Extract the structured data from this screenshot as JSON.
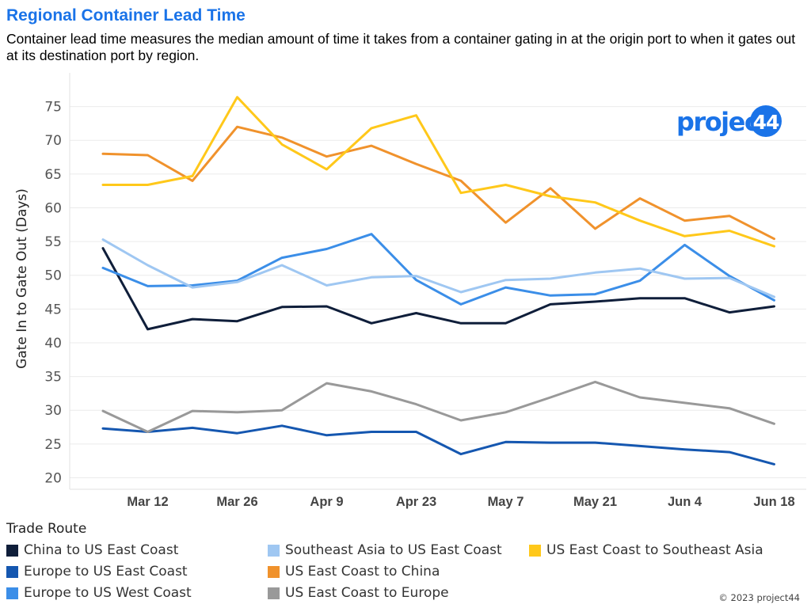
{
  "header": {
    "title": "Regional Container Lead Time",
    "subtitle": "Container lead time measures the median amount of time it takes from a container gating in at the origin port to when it gates out at its destination port by region."
  },
  "logo": {
    "text": "project44",
    "color": "#1a73e8"
  },
  "footer": {
    "copyright": "© 2023 project44"
  },
  "chart_data": {
    "type": "line",
    "title": "Regional Container Lead Time",
    "xlabel": "",
    "ylabel": "Gate In to Gate Out (Days)",
    "ylim": [
      19,
      80
    ],
    "yticks": [
      20,
      25,
      30,
      35,
      40,
      45,
      50,
      55,
      60,
      65,
      70,
      75
    ],
    "x_tick_labels": [
      "Mar 12",
      "Mar 26",
      "Apr 9",
      "Apr 23",
      "May 7",
      "May 21",
      "Jun 4",
      "Jun 18"
    ],
    "x_tick_index": [
      1,
      3,
      5,
      7,
      9,
      11,
      13,
      15
    ],
    "point_count": 16,
    "grid": "horizontal",
    "legend_title": "Trade Route",
    "legend_position": "bottom",
    "series": [
      {
        "name": "China to US East Coast",
        "color": "#0f1e3a",
        "values": [
          54.0,
          42.0,
          43.5,
          43.2,
          45.3,
          45.4,
          42.9,
          44.4,
          42.9,
          42.9,
          45.7,
          46.1,
          46.6,
          46.6,
          44.5,
          45.4
        ]
      },
      {
        "name": "Europe to US East Coast",
        "color": "#1557b0",
        "values": [
          27.3,
          26.8,
          27.4,
          26.6,
          27.7,
          26.3,
          26.8,
          26.8,
          23.5,
          25.3,
          25.2,
          25.2,
          24.7,
          24.2,
          23.8,
          22.0
        ]
      },
      {
        "name": "Europe to US West Coast",
        "color": "#3b8ee8",
        "values": [
          51.1,
          48.4,
          48.5,
          49.2,
          52.6,
          53.9,
          56.1,
          49.3,
          45.7,
          48.2,
          47.0,
          47.2,
          49.2,
          54.5,
          49.9,
          46.3
        ]
      },
      {
        "name": "Southeast Asia to US East Coast",
        "color": "#9fc7f2",
        "values": [
          55.3,
          51.5,
          48.2,
          49.0,
          51.5,
          48.5,
          49.7,
          49.9,
          47.5,
          49.3,
          49.5,
          50.4,
          51.0,
          49.5,
          49.6,
          46.8
        ]
      },
      {
        "name": "US East Coast to China",
        "color": "#f0922c",
        "values": [
          68.0,
          67.8,
          64.0,
          72.0,
          70.4,
          67.6,
          69.2,
          66.5,
          64.0,
          57.8,
          62.9,
          56.9,
          61.4,
          58.1,
          58.8,
          55.4
        ]
      },
      {
        "name": "US East Coast to Europe",
        "color": "#999999",
        "values": [
          29.9,
          26.8,
          29.9,
          29.7,
          30.0,
          34.0,
          32.8,
          30.9,
          28.5,
          29.7,
          31.9,
          34.2,
          31.9,
          31.1,
          30.3,
          28.0
        ]
      },
      {
        "name": "US East Coast to Southeast Asia",
        "color": "#ffc81a",
        "values": [
          63.4,
          63.4,
          64.7,
          76.4,
          69.4,
          65.7,
          71.8,
          73.7,
          62.2,
          63.4,
          61.7,
          60.8,
          58.1,
          55.8,
          56.6,
          54.3
        ]
      }
    ]
  }
}
